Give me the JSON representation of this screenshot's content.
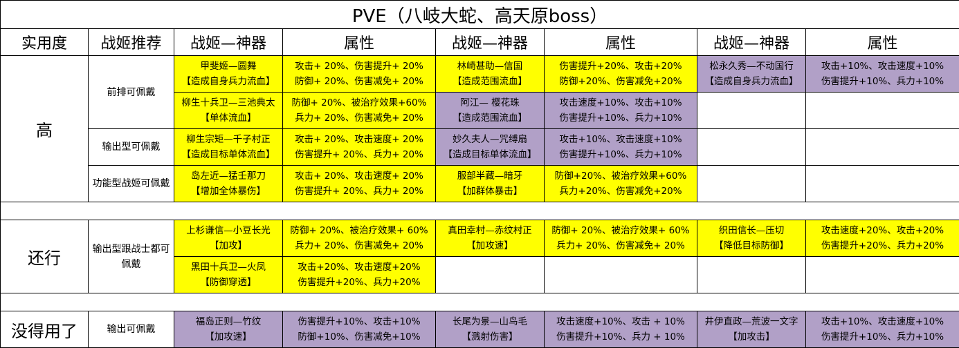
{
  "title": "PVE（八岐大蛇、高天原boss）",
  "headers": [
    "实用度",
    "战姬推荐",
    "战姬—神器",
    "属性",
    "战姬—神器",
    "属性",
    "战姬—神器",
    "属性"
  ],
  "colors": {
    "yellow": "#ffff00",
    "purple": "#b1a0c7"
  },
  "sections": [
    {
      "level": "高",
      "groups": [
        {
          "category": "前排可佩戴",
          "rows": [
            [
              {
                "name": "甲斐姬—圆舞",
                "effect": "【造成自身兵力流血】",
                "stats": [
                  "攻击+ 20%、伤害提升+ 20%",
                  "防御+ 20%、伤害减免+ 20%"
                ],
                "color": "yellow"
              },
              {
                "name": "林崎甚助—信国",
                "effect": "【造成范围流血】",
                "stats": [
                  "伤害提升+20%、攻击+20%",
                  "防御+20%、伤害减免+20%"
                ],
                "color": "yellow"
              },
              {
                "name": "松永久秀—不动国行",
                "effect": "【造成自身兵力流血】",
                "stats": [
                  "攻击+10%、攻击速度+10%",
                  "伤害提升+10%、兵力+10%"
                ],
                "color": "purple"
              }
            ],
            [
              {
                "name": "柳生十兵卫—三池典太",
                "effect": "【单体流血】",
                "stats": [
                  "防御+ 20%、被治疗效果+60%",
                  "兵力+ 20%、伤害减免+ 20%"
                ],
                "color": "yellow"
              },
              {
                "name": "阿江— 樱花珠",
                "effect": "【造成范围流血】",
                "stats": [
                  "攻击速度+10%、攻击+10%",
                  "伤害提升+10%、兵力+10%"
                ],
                "color": "purple"
              }
            ]
          ]
        },
        {
          "category": "输出型可佩戴",
          "rows": [
            [
              {
                "name": "柳生宗矩—千子村正",
                "effect": "【造成目标单体流血】",
                "stats": [
                  "攻击+ 20%、攻击速度+ 20%",
                  "伤害提升+ 20%、兵力+ 20%"
                ],
                "color": "yellow"
              },
              {
                "name": "妙久夫人—咒缚扇",
                "effect": "【造成目标单体流血】",
                "stats": [
                  "攻击+10%、攻击速度+10%",
                  "伤害提升+10%、兵力+10%"
                ],
                "color": "purple"
              }
            ]
          ]
        },
        {
          "category": "功能型战姬可佩戴",
          "rows": [
            [
              {
                "name": "岛左近—猛壬那刀",
                "effect": "【增加全体暴伤】",
                "stats": [
                  "攻击+ 20%、攻击速度+ 20%",
                  "伤害提升+ 20%、兵力+ 20%"
                ],
                "color": "yellow"
              },
              {
                "name": "服部半藏—暗牙",
                "effect": "【加群体暴击】",
                "stats": [
                  "防御+20%、被治疗效果+60%",
                  "兵力+20%、伤害减免+20%"
                ],
                "color": "yellow"
              }
            ]
          ]
        }
      ]
    },
    {
      "level": "还行",
      "groups": [
        {
          "category": "输出型跟战士都可佩戴",
          "rows": [
            [
              {
                "name": "上杉谦信—小豆长光",
                "effect": "【加攻】",
                "stats": [
                  "防御+ 20%、被治疗效果+ 60%",
                  "兵力+ 20%、伤害减免+ 20%"
                ],
                "color": "yellow"
              },
              {
                "name": "真田幸村—赤纹村正",
                "effect": "【加攻速】",
                "stats": [
                  "防御+ 20%、被治疗效果+ 60%",
                  "兵力+ 20%、伤害减免+ 20%"
                ],
                "color": "yellow"
              },
              {
                "name": "织田信长—压切",
                "effect": "【降低目标防御】",
                "stats": [
                  "攻击速度+20%、攻击+20%",
                  "伤害提升+20%、兵力+20%"
                ],
                "color": "yellow"
              }
            ],
            [
              {
                "name": "黑田十兵卫—火凤",
                "effect": "【防御穿透】",
                "stats": [
                  "攻击+20%、攻击速度+20%",
                  "伤害提升+20%、兵力+20%"
                ],
                "color": "yellow"
              }
            ]
          ]
        }
      ]
    },
    {
      "level": "没得用了",
      "groups": [
        {
          "category": "输出可佩戴",
          "rows": [
            [
              {
                "name": "福岛正则—竹纹",
                "effect": "【加攻速】",
                "stats": [
                  "伤害提升+10%、攻击+10%",
                  "防御+10%、伤害减免+10%"
                ],
                "color": "purple"
              },
              {
                "name": "长尾为景—山鸟毛",
                "effect": "【溅射伤害】",
                "stats": [
                  "攻击速度+10%、攻击 + 10%",
                  "伤害提升+10%、兵力 + 10%"
                ],
                "color": "purple"
              },
              {
                "name": "井伊直政—荒波一文字",
                "effect": "【加攻击】",
                "stats": [
                  "攻击+10%、攻击速度+10%",
                  "伤害提升+10%、兵力+10%"
                ],
                "color": "purple"
              }
            ]
          ]
        }
      ]
    }
  ]
}
